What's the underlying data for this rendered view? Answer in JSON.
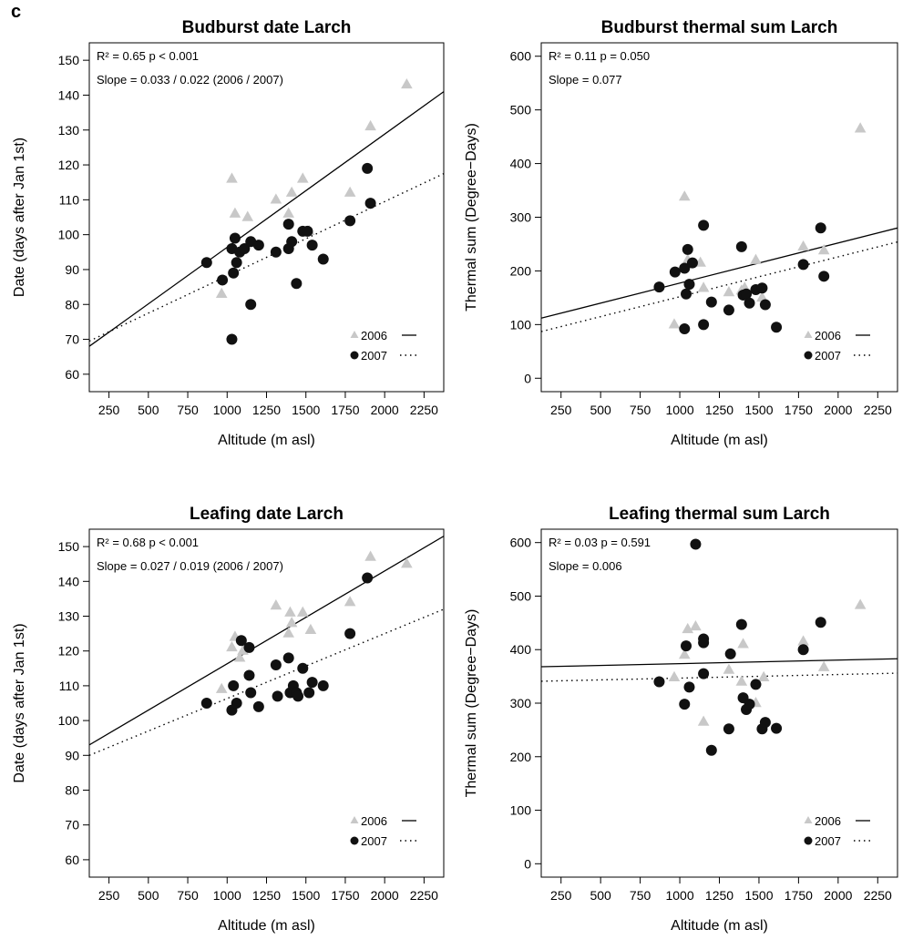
{
  "panel_letter": "c",
  "legend": {
    "label_2006": "2006",
    "label_2007": "2007"
  },
  "chart_data": [
    {
      "type": "scatter",
      "title": "Budburst date Larch",
      "xlabel": "Altitude (m asl)",
      "ylabel": "Date (days after Jan 1st)",
      "xlim": [
        125,
        2375
      ],
      "ylim": [
        55,
        155
      ],
      "xticks": [
        250,
        500,
        750,
        1000,
        1250,
        1500,
        1750,
        2000,
        2250
      ],
      "yticks": [
        60,
        70,
        80,
        90,
        100,
        110,
        120,
        130,
        140,
        150
      ],
      "annotations": [
        "R² = 0.65    p < 0.001",
        "Slope = 0.033 / 0.022 (2006 / 2007)"
      ],
      "legend_position": "bottom-right",
      "grid": false,
      "series": [
        {
          "name": "2006",
          "marker": "triangle",
          "color": "#c8c8c8",
          "points": [
            [
              965,
              83
            ],
            [
              1030,
              116
            ],
            [
              1050,
              106
            ],
            [
              1130,
              105
            ],
            [
              1310,
              110
            ],
            [
              1390,
              106
            ],
            [
              1410,
              112
            ],
            [
              1480,
              116
            ],
            [
              1520,
              101
            ],
            [
              1780,
              112
            ],
            [
              1910,
              131
            ],
            [
              2140,
              143
            ]
          ]
        },
        {
          "name": "2007",
          "marker": "circle",
          "color": "#111111",
          "points": [
            [
              870,
              92
            ],
            [
              970,
              87
            ],
            [
              1030,
              96
            ],
            [
              1030,
              70
            ],
            [
              1040,
              89
            ],
            [
              1050,
              99
            ],
            [
              1060,
              92
            ],
            [
              1080,
              95
            ],
            [
              1110,
              96
            ],
            [
              1150,
              98
            ],
            [
              1150,
              80
            ],
            [
              1200,
              97
            ],
            [
              1310,
              95
            ],
            [
              1390,
              103
            ],
            [
              1390,
              96
            ],
            [
              1410,
              98
            ],
            [
              1440,
              86
            ],
            [
              1480,
              101
            ],
            [
              1510,
              101
            ],
            [
              1540,
              97
            ],
            [
              1610,
              93
            ],
            [
              1780,
              104
            ],
            [
              1890,
              119
            ],
            [
              1910,
              109
            ]
          ]
        }
      ],
      "lines": [
        {
          "name": "2006",
          "style": "solid",
          "x": [
            125,
            2375
          ],
          "y": [
            68,
            141
          ]
        },
        {
          "name": "2007",
          "style": "dotted",
          "x": [
            125,
            2375
          ],
          "y": [
            69.5,
            117.5
          ]
        }
      ]
    },
    {
      "type": "scatter",
      "title": "Budburst thermal sum Larch",
      "xlabel": "Altitude (m asl)",
      "ylabel": "Thermal sum (Degree−Days)",
      "xlim": [
        125,
        2375
      ],
      "ylim": [
        -25,
        625
      ],
      "xticks": [
        250,
        500,
        750,
        1000,
        1250,
        1500,
        1750,
        2000,
        2250
      ],
      "yticks": [
        0,
        100,
        200,
        300,
        400,
        500,
        600
      ],
      "annotations": [
        "R² = 0.11    p = 0.050",
        "Slope = 0.077"
      ],
      "legend_position": "bottom-right",
      "grid": false,
      "series": [
        {
          "name": "2006",
          "marker": "triangle",
          "color": "#c8c8c8",
          "points": [
            [
              965,
              100
            ],
            [
              1030,
              338
            ],
            [
              1050,
              220
            ],
            [
              1130,
              215
            ],
            [
              1150,
              168
            ],
            [
              1310,
              160
            ],
            [
              1390,
              163
            ],
            [
              1410,
              168
            ],
            [
              1480,
              220
            ],
            [
              1520,
              150
            ],
            [
              1780,
              245
            ],
            [
              1910,
              238
            ],
            [
              2140,
              465
            ]
          ]
        },
        {
          "name": "2007",
          "marker": "circle",
          "color": "#111111",
          "points": [
            [
              870,
              170
            ],
            [
              970,
              198
            ],
            [
              1030,
              205
            ],
            [
              1030,
              92
            ],
            [
              1040,
              157
            ],
            [
              1050,
              240
            ],
            [
              1060,
              175
            ],
            [
              1080,
              215
            ],
            [
              1150,
              285
            ],
            [
              1150,
              100
            ],
            [
              1200,
              142
            ],
            [
              1310,
              127
            ],
            [
              1390,
              245
            ],
            [
              1400,
              155
            ],
            [
              1420,
              157
            ],
            [
              1440,
              140
            ],
            [
              1480,
              165
            ],
            [
              1520,
              168
            ],
            [
              1540,
              137
            ],
            [
              1610,
              95
            ],
            [
              1780,
              212
            ],
            [
              1890,
              280
            ],
            [
              1910,
              190
            ]
          ]
        }
      ],
      "lines": [
        {
          "name": "2006",
          "style": "solid",
          "x": [
            125,
            2375
          ],
          "y": [
            112,
            280
          ]
        },
        {
          "name": "2007",
          "style": "dotted",
          "x": [
            125,
            2375
          ],
          "y": [
            87,
            254
          ]
        }
      ]
    },
    {
      "type": "scatter",
      "title": "Leafing date Larch",
      "xlabel": "Altitude (m asl)",
      "ylabel": "Date (days after Jan 1st)",
      "xlim": [
        125,
        2375
      ],
      "ylim": [
        55,
        155
      ],
      "xticks": [
        250,
        500,
        750,
        1000,
        1250,
        1500,
        1750,
        2000,
        2250
      ],
      "yticks": [
        60,
        70,
        80,
        90,
        100,
        110,
        120,
        130,
        140,
        150
      ],
      "annotations": [
        "R² = 0.68    p < 0.001",
        "Slope = 0.027 / 0.019 (2006 / 2007)"
      ],
      "legend_position": "bottom-right",
      "grid": false,
      "series": [
        {
          "name": "2006",
          "marker": "triangle",
          "color": "#c8c8c8",
          "points": [
            [
              965,
              109
            ],
            [
              1030,
              121
            ],
            [
              1050,
              124
            ],
            [
              1080,
              118
            ],
            [
              1100,
              120
            ],
            [
              1310,
              133
            ],
            [
              1390,
              125
            ],
            [
              1400,
              131
            ],
            [
              1410,
              128
            ],
            [
              1480,
              131
            ],
            [
              1530,
              126
            ],
            [
              1780,
              134
            ],
            [
              1910,
              147
            ],
            [
              2140,
              145
            ]
          ]
        },
        {
          "name": "2007",
          "marker": "circle",
          "color": "#111111",
          "points": [
            [
              870,
              105
            ],
            [
              1030,
              103
            ],
            [
              1040,
              110
            ],
            [
              1060,
              105
            ],
            [
              1090,
              123
            ],
            [
              1140,
              113
            ],
            [
              1140,
              121
            ],
            [
              1150,
              108
            ],
            [
              1200,
              104
            ],
            [
              1310,
              116
            ],
            [
              1320,
              107
            ],
            [
              1390,
              118
            ],
            [
              1400,
              108
            ],
            [
              1420,
              110
            ],
            [
              1440,
              108
            ],
            [
              1450,
              107
            ],
            [
              1480,
              115
            ],
            [
              1520,
              108
            ],
            [
              1540,
              111
            ],
            [
              1610,
              110
            ],
            [
              1780,
              125
            ],
            [
              1890,
              141
            ]
          ]
        }
      ],
      "lines": [
        {
          "name": "2006",
          "style": "solid",
          "x": [
            125,
            2375
          ],
          "y": [
            93,
            153
          ]
        },
        {
          "name": "2007",
          "style": "dotted",
          "x": [
            125,
            2375
          ],
          "y": [
            90,
            132
          ]
        }
      ]
    },
    {
      "type": "scatter",
      "title": "Leafing thermal sum Larch",
      "xlabel": "Altitude (m asl)",
      "ylabel": "Thermal sum (Degree−Days)",
      "xlim": [
        125,
        2375
      ],
      "ylim": [
        -25,
        625
      ],
      "xticks": [
        250,
        500,
        750,
        1000,
        1250,
        1500,
        1750,
        2000,
        2250
      ],
      "yticks": [
        0,
        100,
        200,
        300,
        400,
        500,
        600
      ],
      "annotations": [
        "R² = 0.03    p = 0.591",
        "Slope = 0.006"
      ],
      "legend_position": "bottom-right",
      "grid": false,
      "series": [
        {
          "name": "2006",
          "marker": "triangle",
          "color": "#c8c8c8",
          "points": [
            [
              965,
              348
            ],
            [
              1030,
              390
            ],
            [
              1050,
              438
            ],
            [
              1100,
              443
            ],
            [
              1150,
              265
            ],
            [
              1310,
              362
            ],
            [
              1390,
              340
            ],
            [
              1400,
              410
            ],
            [
              1480,
              300
            ],
            [
              1530,
              348
            ],
            [
              1780,
              415
            ],
            [
              1910,
              367
            ],
            [
              2140,
              483
            ]
          ]
        },
        {
          "name": "2007",
          "marker": "circle",
          "color": "#111111",
          "points": [
            [
              870,
              340
            ],
            [
              1030,
              298
            ],
            [
              1040,
              407
            ],
            [
              1060,
              330
            ],
            [
              1100,
              597
            ],
            [
              1150,
              420
            ],
            [
              1150,
              355
            ],
            [
              1150,
              413
            ],
            [
              1200,
              212
            ],
            [
              1310,
              252
            ],
            [
              1320,
              392
            ],
            [
              1390,
              447
            ],
            [
              1400,
              310
            ],
            [
              1420,
              288
            ],
            [
              1440,
              298
            ],
            [
              1480,
              335
            ],
            [
              1520,
              252
            ],
            [
              1540,
              264
            ],
            [
              1610,
              253
            ],
            [
              1780,
              400
            ],
            [
              1890,
              451
            ]
          ]
        }
      ],
      "lines": [
        {
          "name": "2006",
          "style": "solid",
          "x": [
            125,
            2375
          ],
          "y": [
            368,
            383
          ]
        },
        {
          "name": "2007",
          "style": "dotted",
          "x": [
            125,
            2375
          ],
          "y": [
            341,
            356
          ]
        }
      ]
    }
  ]
}
